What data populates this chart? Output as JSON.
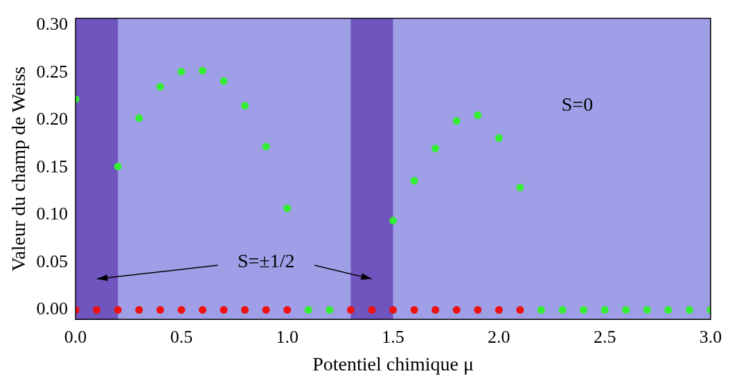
{
  "chart_data": {
    "type": "scatter",
    "xlabel": "Potentiel chimique μ",
    "ylabel": "Valeur du champ de Weiss",
    "xlim": [
      0,
      3
    ],
    "ylim": [
      -0.01,
      0.307
    ],
    "xticks": [
      {
        "value": 0,
        "label": "0.0"
      },
      {
        "value": 0.5,
        "label": "0.5"
      },
      {
        "value": 1,
        "label": "1.0"
      },
      {
        "value": 1.5,
        "label": "1.5"
      },
      {
        "value": 2,
        "label": "2.0"
      },
      {
        "value": 2.5,
        "label": "2.5"
      },
      {
        "value": 3,
        "label": "3.0"
      }
    ],
    "yticks": [
      {
        "value": 0,
        "label": "0.00"
      },
      {
        "value": 0.05,
        "label": "0.05"
      },
      {
        "value": 0.1,
        "label": "0.10"
      },
      {
        "value": 0.15,
        "label": "0.15"
      },
      {
        "value": 0.2,
        "label": "0.20"
      },
      {
        "value": 0.25,
        "label": "0.25"
      },
      {
        "value": 0.3,
        "label": "0.30"
      }
    ],
    "marker": "circle",
    "grid": false,
    "legend": false,
    "bands": [
      {
        "axis": "x",
        "from": 0,
        "to": 0.2,
        "color": "#6f55bd"
      },
      {
        "axis": "x",
        "from": 1.3,
        "to": 1.5,
        "color": "#6f55bd"
      }
    ],
    "series": [
      {
        "color": "#33ee33",
        "x": [
          0,
          0.2,
          0.3,
          0.4,
          0.5,
          0.6,
          0.7,
          0.8,
          0.9,
          1.0,
          1.1,
          1.2,
          1.5,
          1.6,
          1.7,
          1.8,
          1.9,
          2.0,
          2.1,
          2.2,
          2.3,
          2.4,
          2.5,
          2.6,
          2.7,
          2.8,
          2.9,
          3.0
        ],
        "values": [
          0.222,
          0.151,
          0.202,
          0.235,
          0.251,
          0.252,
          0.241,
          0.215,
          0.172,
          0.107,
          0,
          0,
          0.094,
          0.136,
          0.17,
          0.199,
          0.205,
          0.181,
          0.129,
          0,
          0,
          0,
          0,
          0,
          0,
          0,
          0,
          0
        ]
      },
      {
        "color": "#ee1111",
        "x": [
          0,
          0.1,
          0.2,
          0.3,
          0.4,
          0.5,
          0.6,
          0.7,
          0.8,
          0.9,
          1.0,
          1.3,
          1.4,
          1.5,
          1.6,
          1.7,
          1.8,
          1.9,
          2.0,
          2.1
        ],
        "values": [
          0,
          0,
          0,
          0,
          0,
          0,
          0,
          0,
          0,
          0,
          0,
          0,
          0,
          0,
          0,
          0,
          0,
          0,
          0,
          0
        ]
      }
    ],
    "annotations": [
      "S=0",
      "S=±1/2"
    ]
  }
}
